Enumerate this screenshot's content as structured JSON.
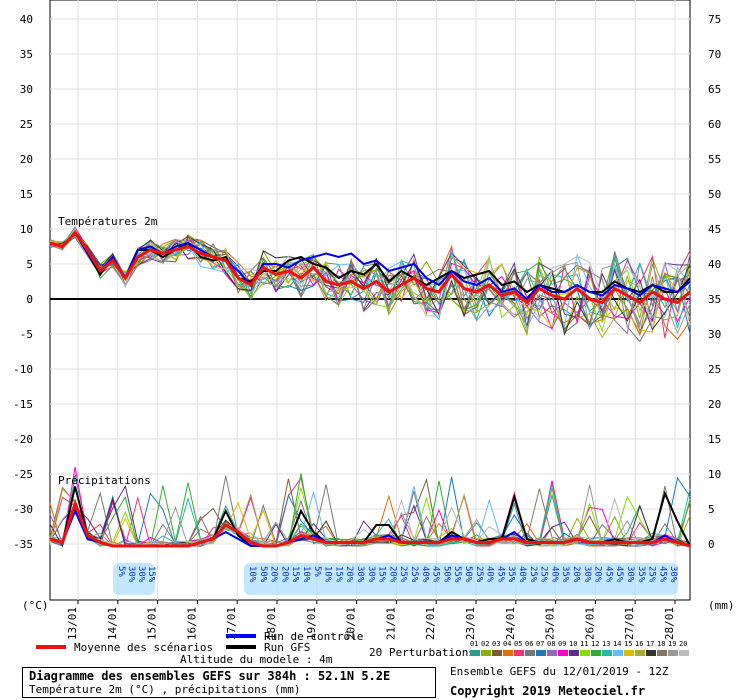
{
  "chart_data": {
    "type": "line",
    "left_axis_ticks": [
      "40",
      "35",
      "30",
      "25",
      "20",
      "15",
      "10",
      "5",
      "0",
      "-5",
      "-10",
      "-15",
      "-20",
      "-25",
      "-30",
      "-35"
    ],
    "right_axis_ticks": [
      "75",
      "70",
      "65",
      "60",
      "55",
      "50",
      "45",
      "40",
      "35",
      "30",
      "25",
      "20",
      "15",
      "10",
      "5",
      "0"
    ],
    "left_unit": "(°C)",
    "right_unit": "(mm)",
    "date_labels": [
      "13/01",
      "14/01",
      "15/01",
      "16/01",
      "17/01",
      "18/01",
      "19/01",
      "20/01",
      "21/01",
      "22/01",
      "23/01",
      "24/01",
      "25/01",
      "26/01",
      "27/01",
      "28/01"
    ],
    "temp_label": "Températures 2m",
    "precip_label": "Précipitations",
    "temp_range": [
      -35,
      40
    ],
    "precip_range": [
      0,
      75
    ],
    "snow_pct_group1": [
      "5%",
      "30%",
      "30%",
      "15%"
    ],
    "snow_pct_group2": [
      "10%",
      "50%",
      "20%",
      "20%",
      "15%",
      "10%",
      "5%",
      "10%",
      "15%",
      "20%",
      "30%",
      "30%",
      "15%",
      "20%",
      "25%",
      "25%",
      "40%",
      "45%",
      "50%",
      "55%",
      "50%",
      "25%",
      "40%",
      "45%",
      "35%",
      "40%",
      "25%",
      "25%",
      "40%",
      "35%",
      "20%",
      "30%",
      "20%",
      "45%",
      "45%",
      "30%",
      "35%",
      "25%",
      "45%",
      "30%"
    ],
    "mean_temp": [
      8,
      7.5,
      9.5,
      7,
      4,
      5.5,
      3,
      6,
      7,
      6.5,
      7,
      7.5,
      6.5,
      6,
      5.5,
      3,
      2,
      4.5,
      3.5,
      4,
      3,
      4.5,
      2.5,
      2,
      2.5,
      1.5,
      2.5,
      1,
      2,
      3,
      1.5,
      1,
      3.5,
      1.5,
      1,
      2,
      0.5,
      1,
      -0.5,
      1.5,
      0.5,
      0,
      1.5,
      0,
      -0.5,
      1.5,
      0.5,
      -0.5,
      1,
      0,
      -0.5,
      1
    ],
    "control_temp": [
      8,
      7.5,
      9.5,
      6.5,
      4,
      6,
      3,
      7,
      7.5,
      6.5,
      7.5,
      8,
      7,
      6,
      5.5,
      4,
      2,
      5,
      5,
      4.5,
      5.5,
      6,
      6.5,
      6,
      6.5,
      5,
      5.5,
      4,
      4.5,
      5,
      3,
      2,
      4,
      2.5,
      2,
      3,
      1,
      1.5,
      0,
      2,
      1,
      1,
      2,
      1,
      0.5,
      2,
      1.5,
      0.5,
      2,
      1.5,
      1,
      2.5
    ],
    "gfs_temp": [
      8,
      7.5,
      9.5,
      6.5,
      3.5,
      6,
      3,
      7,
      7,
      6,
      7,
      8,
      6,
      5.5,
      6,
      3,
      2.5,
      4,
      4,
      5.5,
      6,
      5,
      4.5,
      3,
      4,
      3.5,
      5,
      2.5,
      4,
      3,
      2,
      3,
      4,
      3,
      3.5,
      4,
      2,
      2.5,
      1,
      2,
      1.5,
      1,
      2,
      1,
      1,
      2.5,
      1.5,
      1,
      2,
      1,
      1,
      3
    ],
    "mean_precip": [
      1,
      0.5,
      6,
      1.5,
      0.5,
      0,
      0,
      0,
      0,
      0,
      0,
      0,
      0.5,
      1,
      3,
      2,
      0.5,
      0,
      0,
      0.5,
      1.5,
      1,
      0.5,
      0.5,
      0.5,
      0.5,
      1,
      1,
      0.5,
      0.5,
      0.5,
      0.5,
      1,
      1,
      0.5,
      0.5,
      1,
      1,
      0.5,
      0.5,
      0.5,
      0.5,
      1,
      0.5,
      0.5,
      0.5,
      0.5,
      0.5,
      0.5,
      1,
      0.5,
      0
    ],
    "control_precip": [
      1,
      0.5,
      5,
      1,
      0.5,
      0,
      0,
      0,
      0,
      0,
      0,
      0,
      0.5,
      1,
      2,
      1,
      0,
      0,
      0,
      0.5,
      1,
      1.5,
      0.5,
      0.5,
      0.5,
      0.5,
      1,
      1.5,
      0.5,
      0.5,
      0.5,
      0.5,
      1.5,
      1,
      0.5,
      0.5,
      1,
      2,
      0.5,
      0.5,
      0.5,
      0.5,
      1,
      0.5,
      0.5,
      0.5,
      0.5,
      0.5,
      0.5,
      1.5,
      0.5,
      0
    ],
    "gfs_precip": [
      1,
      0.5,
      8.5,
      1.5,
      0.5,
      0,
      0,
      0,
      0,
      0,
      0,
      0,
      0.5,
      1,
      5,
      1.5,
      0,
      0,
      0,
      0.5,
      5,
      2,
      0.5,
      0.5,
      0.5,
      0.5,
      3,
      3,
      0.5,
      0.5,
      0.5,
      0.5,
      2,
      1,
      0.5,
      1,
      1,
      7,
      1,
      0.5,
      0.5,
      0.5,
      1,
      0.5,
      0.5,
      1,
      0.5,
      0.5,
      1,
      7.5,
      3.5,
      0
    ]
  },
  "legend": {
    "mean": "Moyenne des scénarios",
    "control": "Run de contrôle",
    "gfs": "Run GFS",
    "perturbations": "20 Perturbations",
    "perturbation_ids": [
      "01",
      "02",
      "03",
      "04",
      "05",
      "06",
      "07",
      "08",
      "09",
      "10",
      "11",
      "12",
      "13",
      "14",
      "15",
      "16",
      "17",
      "18",
      "19",
      "20"
    ],
    "altitude": "Altitude du modele : 4m"
  },
  "colors": {
    "mean": "#ee1111",
    "control": "#0000ee",
    "gfs": "#000000",
    "snow": "#aaddff",
    "perturbations": [
      "#2a9d8f",
      "#8ab000",
      "#7a5c3a",
      "#e07000",
      "#ee3377",
      "#777777",
      "#1f77b4",
      "#9467bd",
      "#ff00cc",
      "#5b2d8e",
      "#88dd00",
      "#33aa33",
      "#22bbaa",
      "#66bbff",
      "#ddbb00",
      "#aaaa33",
      "#333333",
      "#887766",
      "#999999",
      "#bbbbbb"
    ]
  },
  "title": {
    "line1": "Diagramme des ensembles GEFS sur 384h : 52.1N 5.2E",
    "line2": "Température 2m (°C) , précipitations (mm)"
  },
  "footer": {
    "run": "Ensemble GEFS du 12/01/2019 - 12Z",
    "copyright": "Copyright 2019 Meteociel.fr"
  }
}
